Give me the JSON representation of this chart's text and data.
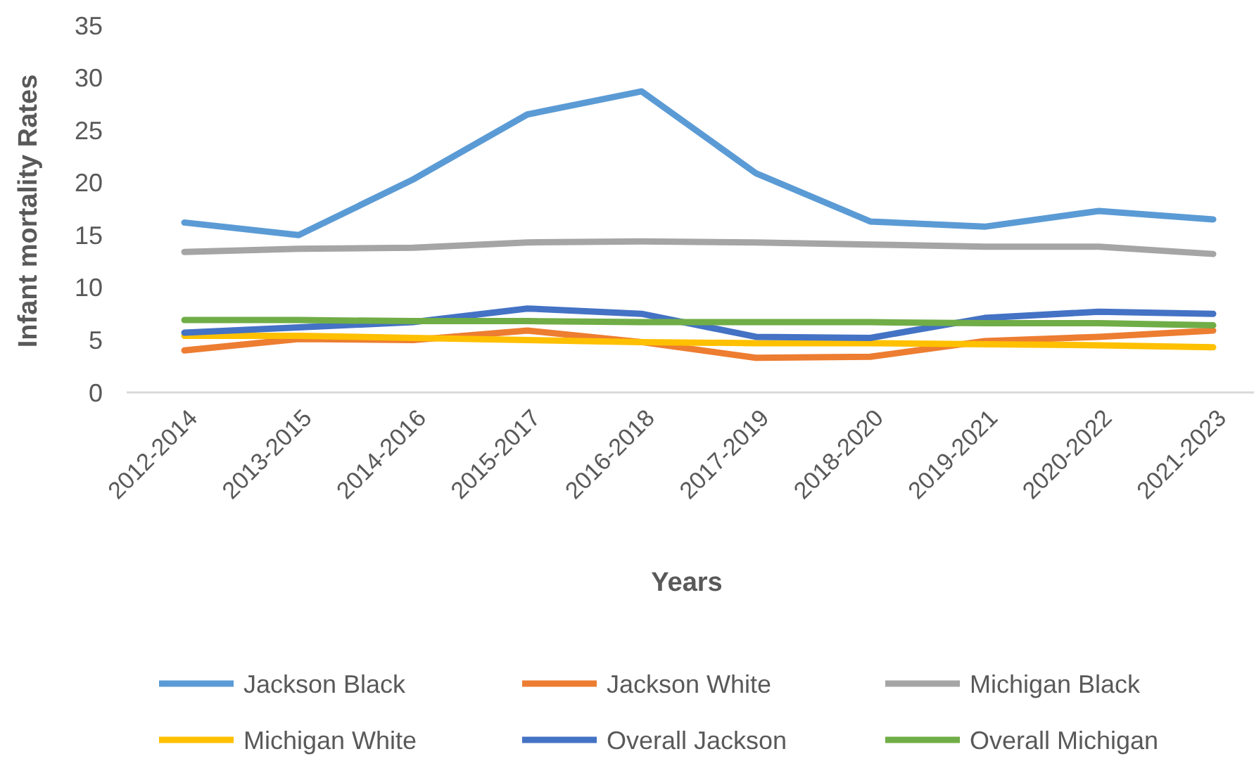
{
  "chart_data": {
    "type": "line",
    "xlabel": "Years",
    "ylabel": "Infant mortality Rates",
    "categories": [
      "2012-2014",
      "2013-2015",
      "2014-2016",
      "2015-2017",
      "2016-2018",
      "2017-2019",
      "2018-2020",
      "2019-2021",
      "2020-2022",
      "2021-2023"
    ],
    "series": [
      {
        "name": "Jackson Black",
        "color": "#5b9bd5",
        "values": [
          16.2,
          15.0,
          20.3,
          26.5,
          28.7,
          20.9,
          16.3,
          15.8,
          17.3,
          16.5
        ]
      },
      {
        "name": "Jackson White",
        "color": "#ed7d31",
        "values": [
          4.0,
          5.1,
          5.0,
          5.9,
          4.8,
          3.3,
          3.4,
          4.9,
          5.3,
          5.9
        ]
      },
      {
        "name": "Michigan Black",
        "color": "#a5a5a5",
        "values": [
          13.4,
          13.7,
          13.8,
          14.3,
          14.4,
          14.3,
          14.1,
          13.9,
          13.9,
          13.2
        ]
      },
      {
        "name": "Michigan White",
        "color": "#ffc000",
        "values": [
          5.4,
          5.4,
          5.2,
          5.0,
          4.8,
          4.7,
          4.7,
          4.6,
          4.5,
          4.3
        ]
      },
      {
        "name": "Overall Jackson",
        "color": "#4472c4",
        "values": [
          5.7,
          6.2,
          6.7,
          8.0,
          7.5,
          5.3,
          5.2,
          7.1,
          7.7,
          7.5
        ]
      },
      {
        "name": "Overall Michigan",
        "color": "#70ad47",
        "values": [
          6.9,
          6.9,
          6.8,
          6.8,
          6.7,
          6.7,
          6.7,
          6.6,
          6.6,
          6.4
        ]
      }
    ],
    "ylim": [
      0,
      35
    ],
    "yticks": [
      0,
      5,
      10,
      15,
      20,
      25,
      30,
      35
    ],
    "grid": false,
    "legend": "bottom",
    "marker": "none",
    "line_style": "solid"
  }
}
